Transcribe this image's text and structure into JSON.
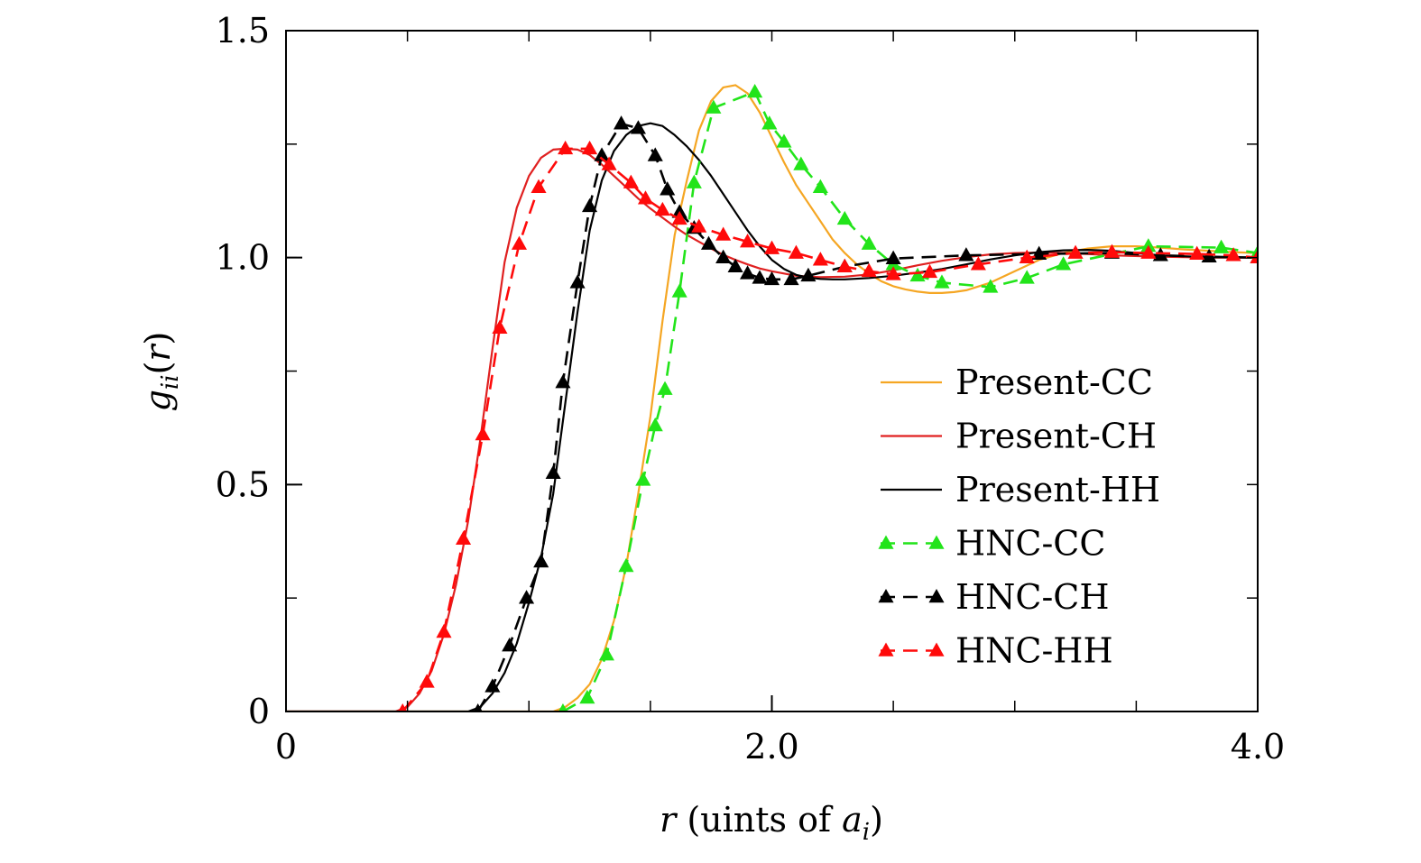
{
  "chart_data": {
    "type": "line",
    "title": "",
    "xlabel": {
      "var": "r",
      "text": " (uints of ",
      "sub_var": "a",
      "sub": "i",
      "close": ")"
    },
    "ylabel": {
      "var": "g",
      "sub": "ii",
      "paren_open": "(",
      "arg": "r",
      "paren_close": ")"
    },
    "xlim": [
      0,
      4.0
    ],
    "ylim": [
      0,
      1.5
    ],
    "x_ticks": [
      {
        "value": 0,
        "label": "0"
      },
      {
        "value": 2.0,
        "label": "2.0"
      },
      {
        "value": 4.0,
        "label": "4.0"
      }
    ],
    "y_ticks": [
      {
        "value": 0,
        "label": "0"
      },
      {
        "value": 0.5,
        "label": "0.5"
      },
      {
        "value": 1.0,
        "label": "1.0"
      },
      {
        "value": 1.5,
        "label": "1.5"
      }
    ],
    "legend_position": "right",
    "series": [
      {
        "name": "Present-CC",
        "style": "solid",
        "color": "#f5a623",
        "x": [
          0,
          1.1,
          1.15,
          1.2,
          1.25,
          1.3,
          1.35,
          1.4,
          1.45,
          1.5,
          1.55,
          1.6,
          1.65,
          1.7,
          1.75,
          1.8,
          1.85,
          1.9,
          1.95,
          2.0,
          2.05,
          2.1,
          2.15,
          2.2,
          2.25,
          2.3,
          2.35,
          2.4,
          2.45,
          2.5,
          2.55,
          2.6,
          2.65,
          2.7,
          2.75,
          2.8,
          2.9,
          3.0,
          3.1,
          3.2,
          3.3,
          3.4,
          3.5,
          3.6,
          3.7,
          3.8,
          3.9,
          4.0
        ],
        "y": [
          0,
          0,
          0.01,
          0.03,
          0.06,
          0.115,
          0.2,
          0.32,
          0.48,
          0.65,
          0.86,
          1.05,
          1.17,
          1.28,
          1.345,
          1.375,
          1.38,
          1.362,
          1.32,
          1.265,
          1.21,
          1.16,
          1.12,
          1.08,
          1.04,
          1.01,
          0.985,
          0.965,
          0.948,
          0.937,
          0.93,
          0.925,
          0.922,
          0.922,
          0.924,
          0.928,
          0.945,
          0.97,
          0.995,
          1.01,
          1.02,
          1.025,
          1.025,
          1.022,
          1.018,
          1.015,
          1.012,
          1.01
        ]
      },
      {
        "name": "Present-CH",
        "style": "solid",
        "color": "#e02020",
        "x": [
          0,
          0.45,
          0.5,
          0.55,
          0.6,
          0.65,
          0.7,
          0.75,
          0.8,
          0.85,
          0.9,
          0.95,
          1.0,
          1.05,
          1.1,
          1.15,
          1.2,
          1.25,
          1.3,
          1.35,
          1.4,
          1.45,
          1.5,
          1.55,
          1.6,
          1.65,
          1.7,
          1.75,
          1.8,
          1.85,
          1.9,
          1.95,
          2.0,
          2.05,
          2.1,
          2.15,
          2.2,
          2.3,
          2.4,
          2.5,
          2.6,
          2.7,
          2.8,
          2.9,
          3.0,
          3.1,
          3.2,
          3.3,
          3.4,
          3.6,
          3.8,
          4.0
        ],
        "y": [
          0,
          0,
          0.01,
          0.04,
          0.09,
          0.17,
          0.28,
          0.42,
          0.6,
          0.8,
          0.99,
          1.11,
          1.18,
          1.22,
          1.238,
          1.24,
          1.238,
          1.226,
          1.205,
          1.18,
          1.155,
          1.13,
          1.108,
          1.088,
          1.068,
          1.05,
          1.035,
          1.02,
          1.006,
          0.995,
          0.985,
          0.976,
          0.97,
          0.965,
          0.96,
          0.958,
          0.957,
          0.958,
          0.963,
          0.972,
          0.983,
          0.993,
          1.001,
          1.007,
          1.01,
          1.011,
          1.01,
          1.008,
          1.005,
          1.002,
          1.0,
          1.0
        ]
      },
      {
        "name": "Present-HH",
        "style": "solid",
        "color": "#000000",
        "x": [
          0,
          0.75,
          0.8,
          0.85,
          0.9,
          0.95,
          1.0,
          1.05,
          1.1,
          1.15,
          1.2,
          1.25,
          1.3,
          1.35,
          1.4,
          1.45,
          1.5,
          1.55,
          1.6,
          1.65,
          1.7,
          1.75,
          1.8,
          1.85,
          1.9,
          1.95,
          2.0,
          2.05,
          2.1,
          2.15,
          2.2,
          2.25,
          2.3,
          2.4,
          2.5,
          2.6,
          2.7,
          2.8,
          2.9,
          3.0,
          3.1,
          3.2,
          3.3,
          3.4,
          3.5,
          3.6,
          3.8,
          4.0
        ],
        "y": [
          0,
          0,
          0.01,
          0.04,
          0.085,
          0.15,
          0.24,
          0.34,
          0.48,
          0.68,
          0.88,
          1.06,
          1.17,
          1.235,
          1.27,
          1.29,
          1.296,
          1.29,
          1.27,
          1.245,
          1.215,
          1.18,
          1.14,
          1.1,
          1.06,
          1.025,
          0.995,
          0.975,
          0.962,
          0.956,
          0.953,
          0.952,
          0.952,
          0.955,
          0.96,
          0.967,
          0.975,
          0.985,
          0.996,
          1.005,
          1.012,
          1.016,
          1.017,
          1.015,
          1.01,
          1.005,
          1.001,
          1.0
        ]
      },
      {
        "name": "HNC-CC",
        "style": "dashed",
        "marker": "triangle",
        "color": "#22e41a",
        "x": [
          1.14,
          1.24,
          1.32,
          1.4,
          1.47,
          1.52,
          1.56,
          1.62,
          1.68,
          1.76,
          1.93,
          1.99,
          2.05,
          2.12,
          2.2,
          2.3,
          2.4,
          2.5,
          2.6,
          2.7,
          2.9,
          3.05,
          3.2,
          3.55,
          3.85,
          4.0
        ],
        "y": [
          0.0,
          0.03,
          0.125,
          0.32,
          0.51,
          0.63,
          0.71,
          0.925,
          1.165,
          1.33,
          1.365,
          1.295,
          1.255,
          1.205,
          1.155,
          1.085,
          1.03,
          0.985,
          0.96,
          0.945,
          0.935,
          0.955,
          0.985,
          1.025,
          1.022,
          1.01
        ]
      },
      {
        "name": "HNC-CH",
        "style": "dashed",
        "marker": "triangle",
        "color": "#000000",
        "x": [
          0.79,
          0.85,
          0.92,
          0.99,
          1.05,
          1.1,
          1.14,
          1.2,
          1.25,
          1.3,
          1.38,
          1.45,
          1.52,
          1.57,
          1.62,
          1.68,
          1.74,
          1.8,
          1.85,
          1.9,
          1.95,
          2.0,
          2.08,
          2.15,
          2.3,
          2.5,
          2.8,
          3.1,
          3.4,
          3.6,
          3.8,
          4.0
        ],
        "y": [
          0.0,
          0.055,
          0.145,
          0.25,
          0.33,
          0.525,
          0.725,
          0.945,
          1.113,
          1.225,
          1.295,
          1.285,
          1.225,
          1.15,
          1.1,
          1.065,
          1.03,
          1.0,
          0.98,
          0.965,
          0.955,
          0.952,
          0.952,
          0.96,
          0.98,
          0.998,
          1.005,
          1.008,
          1.01,
          1.005,
          1.002,
          1.0
        ]
      },
      {
        "name": "HNC-HH",
        "style": "dashed",
        "marker": "triangle",
        "color": "#ff0a0a",
        "x": [
          0.48,
          0.58,
          0.65,
          0.73,
          0.81,
          0.88,
          0.96,
          1.04,
          1.15,
          1.25,
          1.33,
          1.42,
          1.48,
          1.55,
          1.62,
          1.7,
          1.8,
          1.9,
          2.0,
          2.1,
          2.2,
          2.3,
          2.4,
          2.5,
          2.65,
          2.85,
          3.05,
          3.25,
          3.4,
          3.55,
          3.75,
          3.9,
          4.0
        ],
        "y": [
          0.0,
          0.065,
          0.175,
          0.38,
          0.61,
          0.845,
          1.03,
          1.155,
          1.24,
          1.24,
          1.205,
          1.165,
          1.13,
          1.105,
          1.085,
          1.068,
          1.05,
          1.035,
          1.02,
          1.01,
          0.995,
          0.98,
          0.97,
          0.963,
          0.968,
          0.985,
          1.0,
          1.01,
          1.012,
          1.01,
          1.008,
          1.005,
          1.0
        ]
      }
    ]
  }
}
